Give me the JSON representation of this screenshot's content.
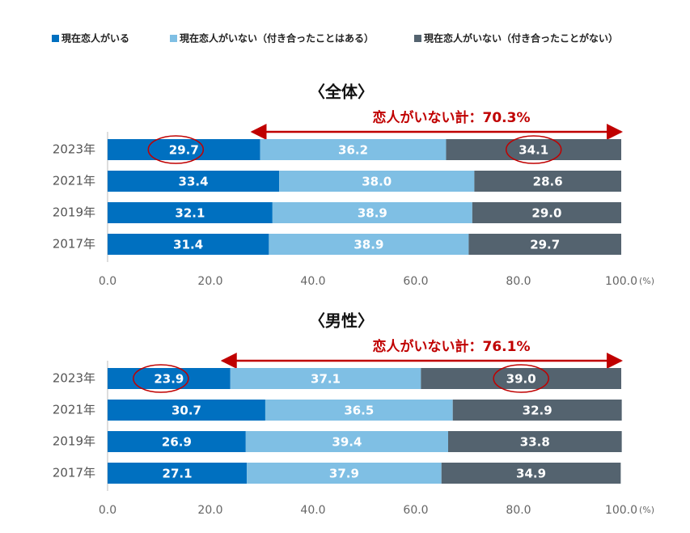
{
  "chart_data": [
    {
      "type": "stacked-barh",
      "title": "〈全体〉",
      "annotation": "恋人がいない計：70.3%",
      "categories": [
        "2023年",
        "2021年",
        "2019年",
        "2017年"
      ],
      "series": [
        {
          "name": "現在恋人がいる",
          "color": "#0070c0",
          "values": [
            29.7,
            33.4,
            32.1,
            31.4
          ],
          "value_labels": [
            "29.7",
            "33.4",
            "32.1",
            "31.4"
          ]
        },
        {
          "name": "現在恋人がいない（付き合ったことはある）",
          "color": "#7fbfe4",
          "values": [
            36.2,
            38,
            38.9,
            38.9
          ],
          "value_labels": [
            "36.2",
            "38.0",
            "38.9",
            "38.9"
          ]
        },
        {
          "name": "現在恋人がいない（付き合ったことがない）",
          "color": "#54636f",
          "values": [
            34.1,
            28.6,
            29,
            29.7
          ],
          "value_labels": [
            "34.1",
            "28.6",
            "29.0",
            "29.7"
          ]
        }
      ],
      "xlim": [
        0,
        100
      ],
      "xticks": [
        {
          "value": 0,
          "label": "0.0"
        },
        {
          "value": 20,
          "label": "20.0"
        },
        {
          "value": 40,
          "label": "40.0"
        },
        {
          "value": 60,
          "label": "60.0"
        },
        {
          "value": 80,
          "label": "80.0"
        },
        {
          "value": 100,
          "label": "100.0"
        }
      ],
      "x_unit": "(%)"
    },
    {
      "type": "stacked-barh",
      "title": "〈男性〉",
      "annotation": "恋人がいない計：76.1%",
      "categories": [
        "2023年",
        "2021年",
        "2019年",
        "2017年"
      ],
      "series": [
        {
          "name": "現在恋人がいる",
          "color": "#0070c0",
          "values": [
            23.9,
            30.7,
            26.9,
            27.1
          ],
          "value_labels": [
            "23.9",
            "30.7",
            "26.9",
            "27.1"
          ]
        },
        {
          "name": "現在恋人がいない（付き合ったことはある）",
          "color": "#7fbfe4",
          "values": [
            37.1,
            36.5,
            39.4,
            37.9
          ],
          "value_labels": [
            "37.1",
            "36.5",
            "39.4",
            "37.9"
          ]
        },
        {
          "name": "現在恋人がいない（付き合ったことがない）",
          "color": "#54636f",
          "values": [
            39,
            32.9,
            33.8,
            34.9
          ],
          "value_labels": [
            "39.0",
            "32.9",
            "33.8",
            "34.9"
          ]
        }
      ],
      "xlim": [
        0,
        100
      ],
      "xticks": [
        {
          "value": 0,
          "label": "0.0"
        },
        {
          "value": 20,
          "label": "20.0"
        },
        {
          "value": 40,
          "label": "40.0"
        },
        {
          "value": 60,
          "label": "60.0"
        },
        {
          "value": 80,
          "label": "80.0"
        },
        {
          "value": 100,
          "label": "100.0"
        }
      ],
      "x_unit": "(%)"
    }
  ]
}
